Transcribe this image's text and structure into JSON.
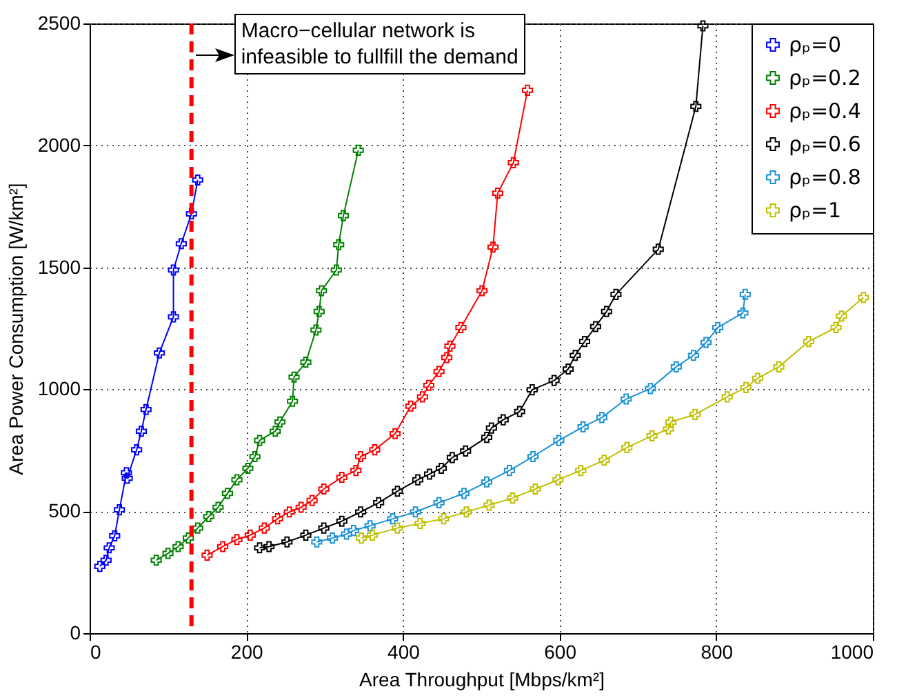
{
  "chart_data": {
    "type": "line",
    "xlabel": "Area Throughput [Mbps/km²]",
    "ylabel": "Area Power Consumption [W/km²]",
    "xlim": [
      0,
      1000
    ],
    "ylim": [
      0,
      2500
    ],
    "xticks": [
      0,
      200,
      400,
      600,
      800,
      1000
    ],
    "yticks": [
      0,
      500,
      1000,
      1500,
      2000,
      2500
    ],
    "grid": true,
    "legend": "top right",
    "marker": "cross",
    "line_style": "solid",
    "annotations": [
      "Macro−cellular network is infeasible to fullfill the demand"
    ],
    "ref_lines": [
      {
        "axis": "x",
        "value": 130,
        "color": "#ff0000",
        "line_style": "dashed"
      }
    ],
    "series": [
      {
        "name": "ρₚ=0",
        "color": "#0000ff",
        "x": [
          13,
          21,
          25,
          32,
          38,
          47,
          48,
          60,
          66,
          72,
          89,
          107,
          107,
          117,
          130,
          138
        ],
        "values": [
          274,
          299,
          350,
          399,
          506,
          658,
          635,
          752,
          828,
          917,
          1149,
          1297,
          1489,
          1597,
          1719,
          1858
        ]
      },
      {
        "name": "ρₚ=0.2",
        "color": "#008000",
        "x": [
          85,
          100,
          113,
          126,
          138,
          152,
          164,
          176,
          188,
          202,
          211,
          217,
          237,
          243,
          259,
          261,
          276,
          289,
          293,
          296,
          315,
          318,
          324,
          343
        ],
        "values": [
          299,
          327,
          355,
          390,
          431,
          478,
          516,
          573,
          629,
          676,
          724,
          790,
          828,
          866,
          951,
          1050,
          1111,
          1243,
          1319,
          1404,
          1489,
          1593,
          1712,
          1980
        ]
      },
      {
        "name": "ρₚ=0.4",
        "color": "#ff0000",
        "x": [
          150,
          170,
          188,
          205,
          223,
          240,
          255,
          270,
          284,
          299,
          322,
          340,
          346,
          364,
          390,
          410,
          425,
          433,
          446,
          456,
          460,
          474,
          501,
          515,
          521,
          541,
          559
        ],
        "values": [
          320,
          355,
          384,
          402,
          431,
          469,
          497,
          516,
          544,
          591,
          639,
          667,
          724,
          752,
          818,
          931,
          969,
          1016,
          1073,
          1130,
          1177,
          1253,
          1404,
          1583,
          1804,
          1929,
          2226
        ]
      },
      {
        "name": "ρₚ=0.6",
        "color": "#000000",
        "x": [
          217,
          229,
          252,
          276,
          299,
          322,
          346,
          369,
          393,
          419,
          434,
          449,
          463,
          480,
          507,
          513,
          528,
          549,
          565,
          593,
          611,
          620,
          632,
          646,
          660,
          672,
          726,
          774,
          783
        ],
        "values": [
          350,
          355,
          374,
          402,
          431,
          459,
          497,
          535,
          582,
          629,
          652,
          676,
          720,
          747,
          803,
          841,
          875,
          909,
          998,
          1036,
          1083,
          1139,
          1196,
          1257,
          1319,
          1389,
          1574,
          2160,
          2490
        ]
      },
      {
        "name": "ρₚ=0.8",
        "color": "#1a91d8",
        "x": [
          290,
          310,
          328,
          337,
          358,
          387,
          416,
          446,
          478,
          507,
          536,
          566,
          599,
          630,
          654,
          685,
          716,
          749,
          771,
          787,
          802,
          834,
          837
        ],
        "values": [
          374,
          390,
          406,
          421,
          440,
          469,
          497,
          535,
          573,
          620,
          667,
          724,
          790,
          846,
          884,
          960,
          1003,
          1092,
          1139,
          1192,
          1253,
          1313,
          1389
        ]
      },
      {
        "name": "ρₚ=1",
        "color": "#bfbf00",
        "x": [
          347,
          361,
          393,
          422,
          452,
          481,
          510,
          540,
          569,
          598,
          627,
          657,
          686,
          718,
          739,
          742,
          773,
          814,
          838,
          853,
          880,
          918,
          953,
          960,
          988
        ],
        "values": [
          390,
          402,
          431,
          450,
          469,
          497,
          525,
          554,
          591,
          629,
          667,
          709,
          761,
          809,
          837,
          865,
          897,
          969,
          1007,
          1045,
          1092,
          1196,
          1253,
          1300,
          1376
        ]
      }
    ]
  }
}
